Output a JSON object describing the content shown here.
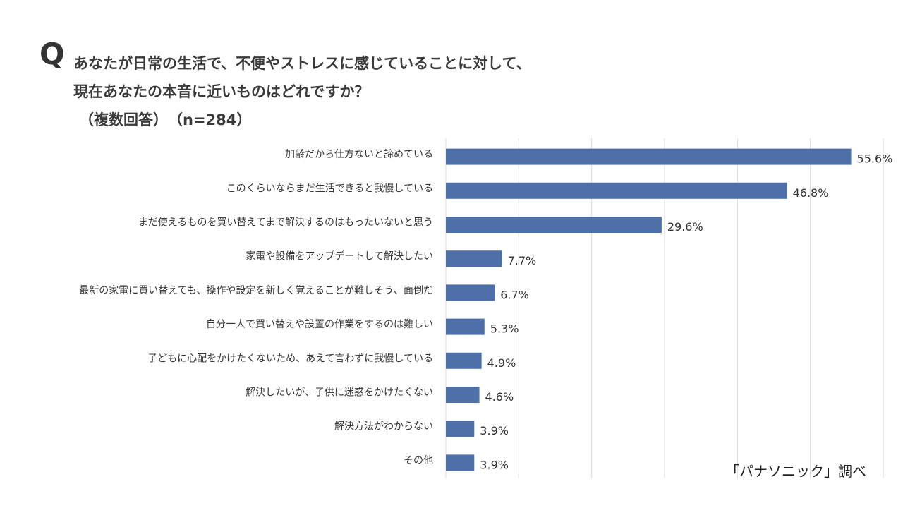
{
  "question": {
    "mark": "Q",
    "line1": "あなたが日常の生活で、不便やストレスに感じていることに対して、",
    "line2": "現在あなたの本音に近いものはどれですか？",
    "line3": "（複数回答）　（n=284）"
  },
  "source": "「パナソニック」調べ",
  "colors": {
    "bar": "#4f6fa8",
    "grid": "#d9d9d9",
    "text": "#333333"
  },
  "chart_data": {
    "type": "bar",
    "orientation": "horizontal",
    "xlim": [
      0,
      60
    ],
    "grid": true,
    "categories": [
      "加齢だから仕方ないと諦めている",
      "このくらいならまだ生活できると我慢している",
      "まだ使えるものを買い替えてまで解決するのはもったいないと思う",
      "家電や設備をアップデートして解決したい",
      "最新の家電に買い替えても、操作や設定を新しく覚えることが難しそう、面倒だ",
      "自分一人で買い替えや設置の作業をするのは難しい",
      "子どもに心配をかけたくないため、あえて言わずに我慢している",
      "解決したいが、子供に迷惑をかけたくない",
      "解決方法がわからない",
      "その他"
    ],
    "values": [
      55.6,
      46.8,
      29.6,
      7.7,
      6.7,
      5.3,
      4.9,
      4.6,
      3.9,
      3.9
    ],
    "value_labels": [
      "55.6%",
      "46.8%",
      "29.6%",
      "7.7%",
      "6.7%",
      "5.3%",
      "4.9%",
      "4.6%",
      "3.9%",
      "3.9%"
    ]
  }
}
